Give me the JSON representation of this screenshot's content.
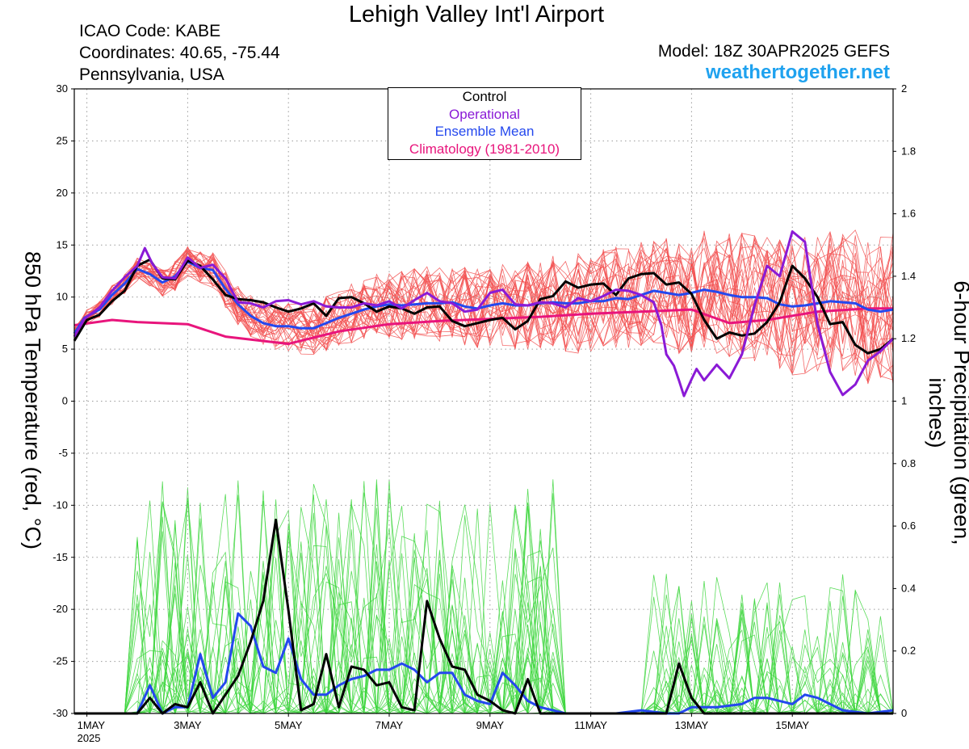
{
  "header": {
    "title": "Lehigh Valley Int'l Airport",
    "icao": "ICAO Code: KABE",
    "coords": "Coordinates: 40.65, -75.44",
    "state": "Pennsylvania, USA",
    "model": "Model: 18Z 30APR2025 GEFS",
    "site": "weathertogether.net"
  },
  "legend": {
    "items": [
      {
        "label": "Control",
        "color": "#000000"
      },
      {
        "label": "Operational",
        "color": "#8a1ad6"
      },
      {
        "label": "Ensemble Mean",
        "color": "#2448ee"
      },
      {
        "label": "Climatology (1981-2010)",
        "color": "#e8157c"
      }
    ]
  },
  "colors": {
    "members_temp": "#f25050",
    "members_precip": "#3dd63d",
    "grid": "#9a9a9a"
  },
  "chart_data": {
    "type": "line",
    "title": "Lehigh Valley Int'l Airport",
    "ylabel": "850 hPa Temperature (red, °C)",
    "y2label": "6-hour Precipitation (green, inches)",
    "ylim": [
      -30,
      30
    ],
    "y2lim": [
      0,
      2
    ],
    "yticks": [
      "30",
      "25",
      "20",
      "15",
      "10",
      "5",
      "0",
      "-5",
      "-10",
      "-15",
      "-20",
      "-25",
      "-30"
    ],
    "y2ticks": [
      "2",
      "1.8",
      "1.6",
      "1.4",
      "1.2",
      "1",
      "0.8",
      "0.6",
      "0.4",
      "0.2",
      "0"
    ],
    "x_unit": "day of May 2025",
    "xlim": [
      1,
      17
    ],
    "xticks": [
      {
        "day": 1,
        "label": "1MAY",
        "sub": "2025"
      },
      {
        "day": 3,
        "label": "3MAY"
      },
      {
        "day": 5,
        "label": "5MAY"
      },
      {
        "day": 7,
        "label": "7MAY"
      },
      {
        "day": 9,
        "label": "9MAY"
      },
      {
        "day": 11,
        "label": "11MAY"
      },
      {
        "day": 13,
        "label": "13MAY"
      },
      {
        "day": 15,
        "label": "15MAY"
      }
    ],
    "grid": true,
    "legend_position": "top-center",
    "series": [
      {
        "name": "Climatology (1981-2010)",
        "axis": "left",
        "color": "#e8157c",
        "width": 3,
        "x": [
          0.75,
          1.5,
          2,
          3,
          3.75,
          5,
          6,
          7,
          8,
          9,
          10,
          11,
          12,
          13,
          13.75,
          14.5,
          15.5,
          16.5,
          17
        ],
        "y": [
          7.3,
          7.8,
          7.6,
          7.4,
          6.2,
          5.5,
          6.7,
          7.4,
          7.7,
          7.9,
          8.1,
          8.4,
          8.6,
          8.8,
          7.5,
          7.8,
          8.6,
          8.9,
          8.9
        ]
      },
      {
        "name": "Ensemble Mean",
        "axis": "left",
        "color": "#2448ee",
        "width": 3,
        "x": [
          0.75,
          0.95,
          1.25,
          1.5,
          1.75,
          2,
          2.25,
          2.5,
          2.75,
          3,
          3.25,
          3.5,
          3.75,
          4,
          4.25,
          4.5,
          4.75,
          5,
          5.25,
          5.5,
          5.75,
          6,
          6.25,
          6.5,
          6.75,
          7,
          7.25,
          7.5,
          7.75,
          8,
          8.25,
          8.5,
          8.75,
          9,
          9.25,
          9.5,
          9.75,
          10,
          10.25,
          10.5,
          10.75,
          11,
          11.25,
          11.5,
          11.75,
          12,
          12.25,
          12.5,
          12.75,
          13,
          13.25,
          13.5,
          13.75,
          14,
          14.25,
          14.5,
          14.75,
          15,
          15.25,
          15.5,
          15.75,
          16,
          16.25,
          16.5,
          16.75,
          17
        ],
        "y": [
          6.5,
          8,
          8.8,
          10.2,
          11.3,
          12.7,
          12.2,
          11.4,
          12,
          13.4,
          12.8,
          12.6,
          10.8,
          9.3,
          8.2,
          7.5,
          7.2,
          7.2,
          7,
          7,
          7.5,
          8,
          8.4,
          8.8,
          9.1,
          9.3,
          9.2,
          9.3,
          9.4,
          9.4,
          9.5,
          9.1,
          8.9,
          9.2,
          9.4,
          9.2,
          9.2,
          9.4,
          9.5,
          9.4,
          9.4,
          9.6,
          9.6,
          9.9,
          9.8,
          10.2,
          10.6,
          10.4,
          10.2,
          10.4,
          10.7,
          10.5,
          10.2,
          10,
          10,
          9.9,
          9.3,
          9.1,
          9.2,
          9.4,
          9.6,
          9.5,
          9.4,
          8.8,
          8.6,
          8.8
        ]
      },
      {
        "name": "Control",
        "axis": "left",
        "color": "#000000",
        "width": 3,
        "x": [
          0.75,
          1,
          1.25,
          1.5,
          1.75,
          2,
          2.25,
          2.5,
          2.75,
          3,
          3.25,
          3.5,
          3.75,
          4,
          4.25,
          4.5,
          4.75,
          5,
          5.25,
          5.5,
          5.75,
          6,
          6.25,
          6.5,
          6.75,
          7,
          7.25,
          7.5,
          7.75,
          8,
          8.25,
          8.5,
          8.75,
          9,
          9.25,
          9.5,
          9.75,
          10,
          10.25,
          10.5,
          10.75,
          11,
          11.25,
          11.5,
          11.75,
          12,
          12.25,
          12.5,
          12.75,
          13,
          13.25,
          13.5,
          13.75,
          14,
          14.25,
          14.5,
          14.75,
          15,
          15.25,
          15.5,
          15.75,
          16,
          16.25,
          16.5,
          16.75,
          17
        ],
        "y": [
          5.8,
          7.8,
          8.3,
          9.6,
          10.6,
          13,
          13.6,
          11.8,
          11.7,
          13.5,
          13,
          11.7,
          10.2,
          9.8,
          9.7,
          9.5,
          9,
          8.6,
          8.9,
          9.4,
          8.2,
          9.9,
          10,
          9.4,
          8.6,
          9.1,
          8.9,
          8.4,
          9,
          9.1,
          7.7,
          7.2,
          7.5,
          7.8,
          8,
          6.9,
          7.7,
          9.8,
          10.1,
          11.5,
          10.9,
          11.2,
          11.3,
          10.2,
          11.8,
          12.2,
          12.3,
          11.2,
          11.4,
          10.3,
          7.8,
          6,
          6.6,
          6.3,
          6.5,
          7.6,
          9.5,
          13,
          11.8,
          10,
          7.4,
          7.6,
          5.4,
          4.6,
          5,
          6
        ]
      },
      {
        "name": "Operational",
        "axis": "left",
        "color": "#8a1ad6",
        "width": 3,
        "x": [
          0.75,
          0.95,
          1.25,
          1.5,
          1.75,
          2,
          2.15,
          2.3,
          2.5,
          2.75,
          3,
          3.25,
          3.5,
          3.75,
          4,
          4.25,
          4.5,
          4.75,
          5,
          5.25,
          5.5,
          5.75,
          6,
          6.25,
          6.5,
          6.75,
          7,
          7.25,
          7.5,
          7.75,
          8,
          8.25,
          8.5,
          8.75,
          9,
          9.25,
          9.5,
          9.75,
          10,
          10.25,
          10.5,
          10.75,
          11,
          11.25,
          11.5,
          11.75,
          12,
          12.25,
          12.4,
          12.5,
          12.65,
          12.75,
          12.85,
          13,
          13.1,
          13.25,
          13.5,
          13.75,
          14,
          14.25,
          14.5,
          14.75,
          15,
          15.25,
          15.5,
          15.75,
          16,
          16.25,
          16.5,
          16.75,
          17
        ],
        "y": [
          6.2,
          7.9,
          9,
          10.6,
          11.9,
          13,
          14.7,
          13.2,
          11.9,
          11.8,
          13.8,
          12.8,
          13.1,
          11.8,
          9.5,
          9.4,
          9,
          9.6,
          9.7,
          9.3,
          9.6,
          9.1,
          9,
          9,
          9.4,
          9.2,
          9.6,
          8.9,
          9.7,
          10.4,
          9.6,
          9.4,
          8.6,
          8.8,
          10.4,
          10.7,
          9.3,
          9.2,
          9.5,
          9.4,
          9,
          9.9,
          9.6,
          10.1,
          10.7,
          10.6,
          10.2,
          9.5,
          7.3,
          4.5,
          3.4,
          2,
          0.5,
          2.1,
          3.1,
          2,
          3.5,
          2.2,
          4.5,
          9.2,
          13,
          12,
          16.3,
          15.3,
          7.4,
          2.8,
          0.6,
          1.6,
          3.9,
          4.8,
          6
        ]
      },
      {
        "name": "Ensemble Mean",
        "axis": "right",
        "color": "#2448ee",
        "width": 3,
        "x": [
          0.75,
          1,
          1.25,
          1.5,
          1.75,
          2,
          2.25,
          2.5,
          2.75,
          3,
          3.25,
          3.5,
          3.75,
          4,
          4.25,
          4.5,
          4.75,
          5,
          5.25,
          5.5,
          5.75,
          6,
          6.25,
          6.5,
          6.75,
          7,
          7.25,
          7.5,
          7.75,
          8,
          8.25,
          8.5,
          8.75,
          9,
          9.25,
          9.5,
          9.75,
          10,
          10.25,
          10.5,
          10.75,
          11,
          11.5,
          12,
          12.5,
          12.75,
          13,
          13.5,
          14,
          14.25,
          14.5,
          15,
          15.25,
          15.5,
          16,
          16.5,
          17
        ],
        "y": [
          0,
          0,
          0,
          0,
          0,
          0,
          0.09,
          0,
          0.02,
          0.02,
          0.19,
          0.05,
          0.1,
          0.32,
          0.28,
          0.15,
          0.13,
          0.24,
          0.11,
          0.06,
          0.06,
          0.09,
          0.11,
          0.12,
          0.14,
          0.14,
          0.16,
          0.14,
          0.1,
          0.13,
          0.13,
          0.06,
          0.04,
          0.03,
          0.13,
          0.09,
          0.04,
          0.02,
          0.01,
          0,
          0,
          0,
          0,
          0.01,
          0,
          0,
          0.02,
          0.02,
          0.03,
          0.05,
          0.05,
          0.03,
          0.06,
          0.05,
          0.01,
          0,
          0.01
        ]
      },
      {
        "name": "Control",
        "axis": "right",
        "color": "#000000",
        "width": 3,
        "x": [
          0.75,
          1,
          1.25,
          1.5,
          1.75,
          2,
          2.25,
          2.5,
          2.75,
          3,
          3.25,
          3.5,
          3.75,
          4,
          4.25,
          4.5,
          4.75,
          5,
          5.25,
          5.5,
          5.75,
          6,
          6.25,
          6.5,
          6.75,
          7,
          7.25,
          7.5,
          7.75,
          8,
          8.25,
          8.5,
          8.75,
          9,
          9.25,
          9.5,
          9.75,
          10,
          10.25,
          10.5,
          10.75,
          11,
          11.5,
          12,
          12.5,
          12.75,
          13,
          13.25,
          13.5,
          14,
          14.5,
          15,
          15.5,
          16,
          16.5,
          17
        ],
        "y": [
          0,
          0,
          0,
          0,
          0,
          0,
          0.05,
          0,
          0.03,
          0.02,
          0.1,
          0,
          0.06,
          0.12,
          0.23,
          0.36,
          0.62,
          0.33,
          0.01,
          0.03,
          0.19,
          0.02,
          0.15,
          0.14,
          0.09,
          0.1,
          0.02,
          0.01,
          0.36,
          0.24,
          0.15,
          0.14,
          0.06,
          0.04,
          0.01,
          0,
          0.11,
          0,
          0,
          0,
          0,
          0,
          0,
          0,
          0,
          0.16,
          0.05,
          0,
          0,
          0,
          0,
          0,
          0,
          0,
          0,
          0
        ]
      }
    ]
  }
}
